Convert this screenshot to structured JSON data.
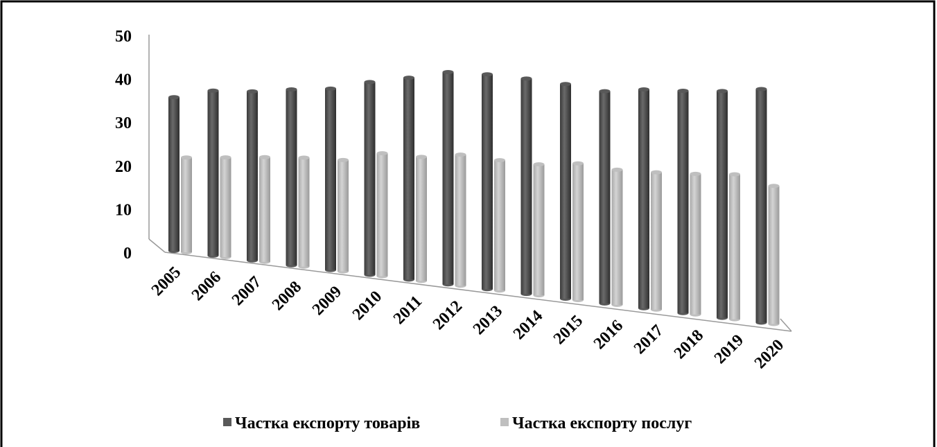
{
  "chart_data": {
    "type": "bar3d",
    "categories": [
      "2005",
      "2006",
      "2007",
      "2008",
      "2009",
      "2010",
      "2011",
      "2012",
      "2013",
      "2014",
      "2015",
      "2016",
      "2017",
      "2018",
      "2019",
      "2020"
    ],
    "series": [
      {
        "name": "Частка експорту товарів",
        "color": "#595959",
        "values": [
          35.2,
          37.1,
          37.3,
          38.1,
          38.6,
          40.3,
          41.5,
          42.9,
          42.7,
          42.1,
          41.3,
          40.2,
          40.8,
          40.8,
          41.0,
          41.6
        ]
      },
      {
        "name": "Частка експорту послуг",
        "color": "#bfbfbf",
        "values": [
          21.7,
          22.4,
          23.1,
          23.6,
          23.7,
          25.7,
          25.5,
          26.5,
          25.9,
          25.6,
          26.3,
          25.6,
          25.6,
          25.8,
          26.2,
          24.6
        ]
      }
    ],
    "ylim": [
      0,
      50
    ],
    "yticks": [
      0,
      10,
      20,
      30,
      40,
      50
    ],
    "legend": "bottom"
  }
}
